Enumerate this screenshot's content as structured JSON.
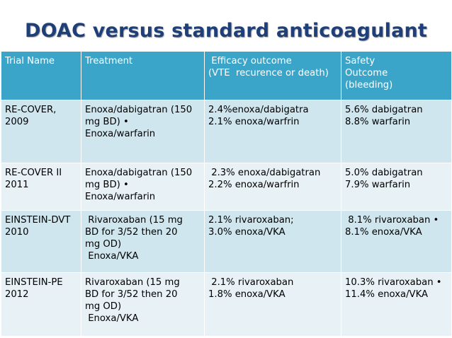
{
  "slide": {
    "title": "DOAC versus standard anticoagulant"
  },
  "table": {
    "headers": {
      "trial_name": "Trial Name",
      "treatment": "Treatment",
      "efficacy": " Efficacy outcome\n(VTE  recurence or death)",
      "safety": "Safety\nOutcome\n(bleeding)"
    },
    "rows": [
      {
        "trial": "RE-COVER,\n2009",
        "treatment": "Enoxa/dabigatran (150\nmg BD) •\nEnoxa/warfarin",
        "efficacy": "2.4%enoxa/dabigatra\n2.1% enoxa/warfrin",
        "safety": "5.6% dabigatran\n8.8% warfarin"
      },
      {
        "trial": "RE-COVER II\n2011",
        "treatment": "Enoxa/dabigatran (150\nmg BD) •\nEnoxa/warfarin",
        "efficacy": " 2.3% enoxa/dabigatran\n2.2% enoxa/warfrin",
        "safety": "5.0% dabigatran\n7.9% warfarin"
      },
      {
        "trial": "EINSTEIN-DVT\n2010",
        "treatment": " Rivaroxaban (15 mg\nBD for 3/52 then 20\nmg OD)\n Enoxa/VKA",
        "efficacy": "2.1% rivaroxaban;\n3.0% enoxa/VKA",
        "safety": " 8.1% rivaroxaban •\n8.1% enoxa/VKA"
      },
      {
        "trial": "EINSTEIN-PE\n2012",
        "treatment": "Rivaroxaban (15 mg\nBD for 3/52 then 20\nmg OD)\n Enoxa/VKA",
        "efficacy": " 2.1% rivaroxaban\n1.8% enoxa/VKA",
        "safety": "10.3% rivaroxaban •\n11.4% enoxa/VKA"
      }
    ]
  },
  "colors": {
    "title": "#1f3f79",
    "header_bg": "#3aa5c8",
    "row_dark": "#cfe6ef",
    "row_light": "#e7f1f6"
  }
}
